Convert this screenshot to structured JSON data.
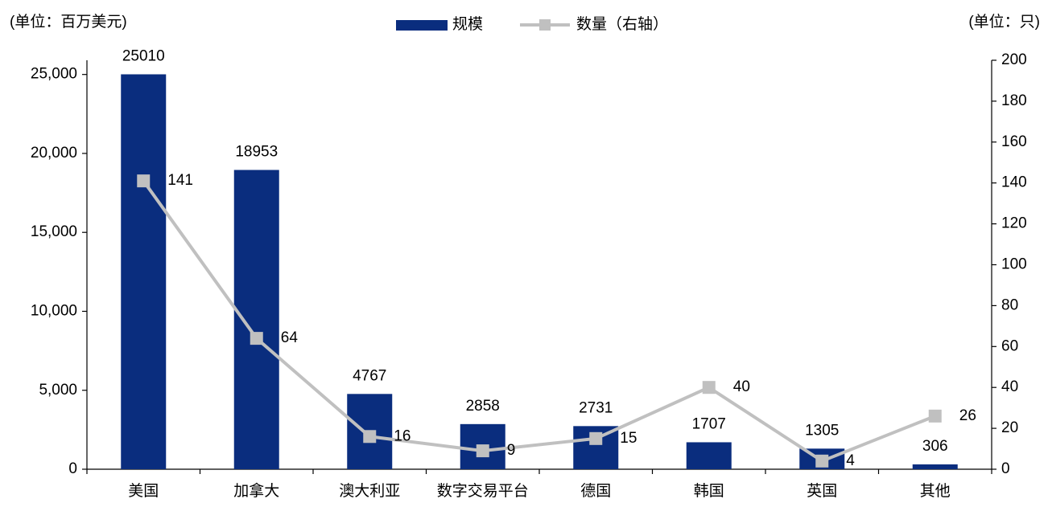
{
  "chart_data": {
    "type": "bar-line",
    "left_unit": "(单位：百万美元)",
    "right_unit": "(单位：只)",
    "categories": [
      "美国",
      "加拿大",
      "澳大利亚",
      "数字交易平台",
      "德国",
      "韩国",
      "英国",
      "其他"
    ],
    "series": [
      {
        "name": "规模",
        "type": "bar",
        "color": "#0a2d7e",
        "values": [
          25010,
          18953,
          4767,
          2858,
          2731,
          1707,
          1305,
          306
        ]
      },
      {
        "name": "数量（右轴）",
        "type": "line",
        "axis": "y2",
        "color": "#c0c0c0",
        "values": [
          141,
          64,
          16,
          9,
          15,
          40,
          4,
          26
        ]
      }
    ],
    "ylim": [
      0,
      25900
    ],
    "yticks": [
      0,
      {
        "value": 5000,
        "label": "5,000"
      },
      {
        "value": 10000,
        "label": "10,000"
      },
      {
        "value": 15000,
        "label": "15,000"
      },
      {
        "value": 20000,
        "label": "20,000"
      },
      {
        "value": 25000,
        "label": "25,000"
      }
    ],
    "y2lim": [
      0,
      200
    ],
    "y2ticks": [
      0,
      20,
      40,
      60,
      80,
      100,
      120,
      140,
      160,
      180,
      200
    ]
  }
}
